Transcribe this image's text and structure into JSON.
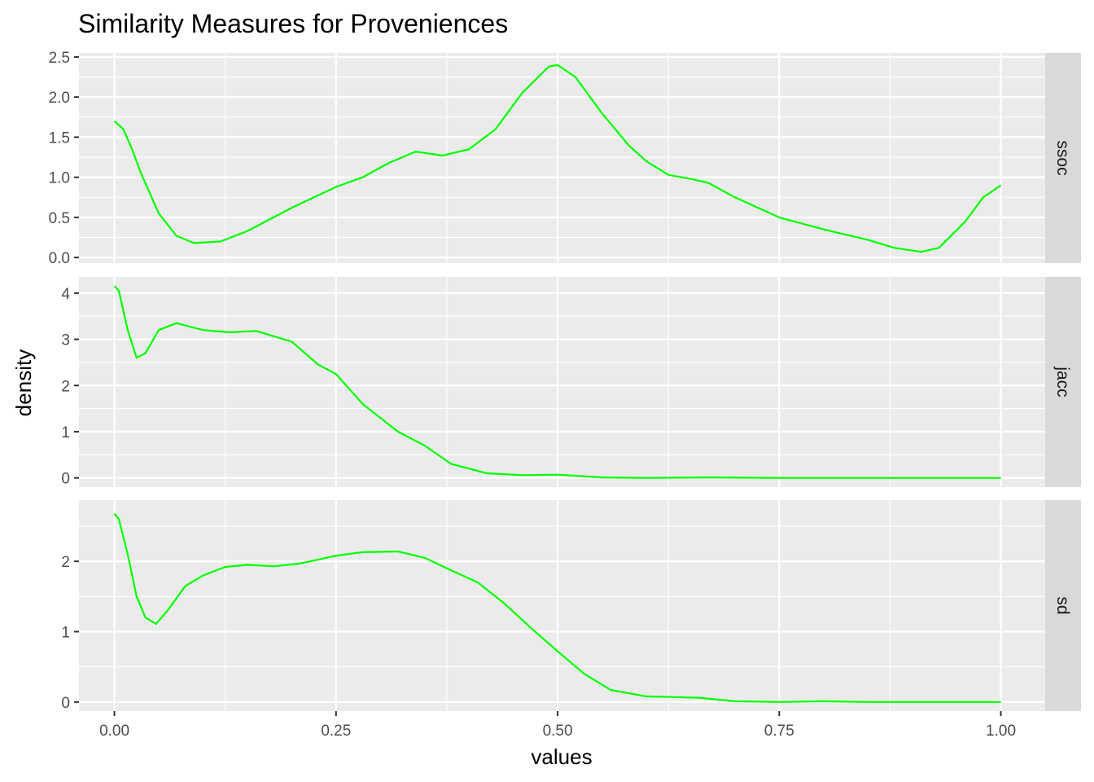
{
  "chart_data": {
    "type": "line",
    "title": "Similarity Measures for Proveniences",
    "xlabel": "values",
    "ylabel": "density",
    "xlim": [
      -0.04,
      1.05
    ],
    "x_ticks": [
      0.0,
      0.25,
      0.5,
      0.75,
      1.0
    ],
    "x_tick_labels": [
      "0.00",
      "0.25",
      "0.50",
      "0.75",
      "1.00"
    ],
    "grid": true,
    "line_color": "#00ff00",
    "panel_background": "#ebebeb",
    "strip_background": "#d9d9d9",
    "facets": [
      {
        "name": "ssoc",
        "ylim": [
          -0.07,
          2.55
        ],
        "y_ticks": [
          0.0,
          0.5,
          1.0,
          1.5,
          2.0,
          2.5
        ],
        "y_tick_labels": [
          "0.0",
          "0.5",
          "1.0",
          "1.5",
          "2.0",
          "2.5"
        ],
        "x": [
          0.0,
          0.01,
          0.02,
          0.03,
          0.05,
          0.07,
          0.09,
          0.12,
          0.15,
          0.2,
          0.25,
          0.28,
          0.31,
          0.34,
          0.37,
          0.4,
          0.43,
          0.46,
          0.49,
          0.5,
          0.52,
          0.55,
          0.58,
          0.6,
          0.625,
          0.65,
          0.67,
          0.7,
          0.75,
          0.8,
          0.85,
          0.88,
          0.91,
          0.93,
          0.96,
          0.98,
          1.0
        ],
        "y": [
          1.7,
          1.6,
          1.35,
          1.05,
          0.55,
          0.27,
          0.18,
          0.2,
          0.33,
          0.62,
          0.88,
          1.0,
          1.18,
          1.32,
          1.27,
          1.35,
          1.6,
          2.05,
          2.38,
          2.4,
          2.25,
          1.8,
          1.4,
          1.2,
          1.03,
          0.98,
          0.93,
          0.75,
          0.5,
          0.35,
          0.22,
          0.12,
          0.07,
          0.12,
          0.45,
          0.75,
          0.9
        ]
      },
      {
        "name": "jacc",
        "ylim": [
          -0.2,
          4.35
        ],
        "y_ticks": [
          0,
          1,
          2,
          3,
          4
        ],
        "y_tick_labels": [
          "0",
          "1",
          "2",
          "3",
          "4"
        ],
        "x": [
          0.0,
          0.005,
          0.015,
          0.025,
          0.035,
          0.05,
          0.07,
          0.1,
          0.13,
          0.16,
          0.2,
          0.23,
          0.25,
          0.28,
          0.32,
          0.35,
          0.38,
          0.42,
          0.46,
          0.5,
          0.55,
          0.6,
          0.67,
          0.75,
          1.0
        ],
        "y": [
          4.15,
          4.05,
          3.2,
          2.6,
          2.7,
          3.2,
          3.35,
          3.2,
          3.15,
          3.18,
          2.95,
          2.45,
          2.25,
          1.6,
          1.0,
          0.7,
          0.3,
          0.1,
          0.06,
          0.07,
          0.01,
          0.0,
          0.01,
          0.0,
          0.0
        ]
      },
      {
        "name": "sd",
        "ylim": [
          -0.13,
          2.87
        ],
        "y_ticks": [
          0,
          1,
          2
        ],
        "y_tick_labels": [
          "0",
          "1",
          "2"
        ],
        "x": [
          0.0,
          0.005,
          0.015,
          0.025,
          0.035,
          0.047,
          0.06,
          0.08,
          0.1,
          0.125,
          0.15,
          0.18,
          0.21,
          0.25,
          0.28,
          0.32,
          0.35,
          0.38,
          0.41,
          0.44,
          0.47,
          0.5,
          0.53,
          0.56,
          0.6,
          0.63,
          0.66,
          0.7,
          0.75,
          0.8,
          0.85,
          1.0
        ],
        "y": [
          2.68,
          2.6,
          2.1,
          1.5,
          1.2,
          1.11,
          1.3,
          1.65,
          1.8,
          1.92,
          1.95,
          1.93,
          1.97,
          2.08,
          2.13,
          2.14,
          2.05,
          1.87,
          1.7,
          1.4,
          1.05,
          0.72,
          0.4,
          0.17,
          0.08,
          0.07,
          0.06,
          0.01,
          0.0,
          0.01,
          0.0,
          0.0
        ]
      }
    ]
  }
}
